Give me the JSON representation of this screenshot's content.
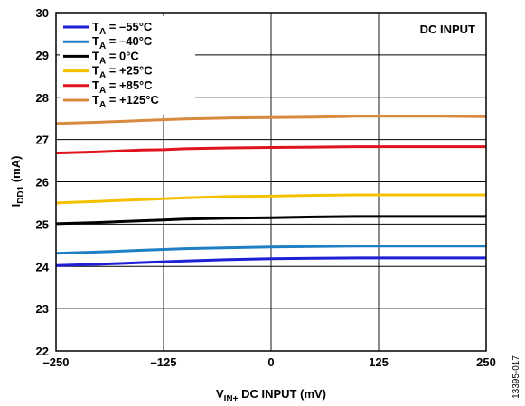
{
  "chart_data": {
    "type": "line",
    "annotation": "DC INPUT",
    "xlabel": {
      "main": "V",
      "sub": "IN+",
      "rest": " DC INPUT (mV)"
    },
    "ylabel": {
      "main": "I",
      "sub": "DD1",
      "rest": " (mA)"
    },
    "xlim": [
      -250,
      250
    ],
    "ylim": [
      22,
      30
    ],
    "x_ticks": [
      "–250",
      "–125",
      "0",
      "125",
      "250"
    ],
    "x_tick_values": [
      -250,
      -125,
      0,
      125,
      250
    ],
    "y_ticks": [
      "22",
      "23",
      "24",
      "25",
      "26",
      "27",
      "28",
      "29",
      "30"
    ],
    "y_tick_values": [
      22,
      23,
      24,
      25,
      26,
      27,
      28,
      29,
      30
    ],
    "grid": true,
    "legend_position": "top-left",
    "figure_id": "13395-017",
    "x": [
      -250,
      -200,
      -150,
      -125,
      -100,
      -50,
      0,
      50,
      100,
      125,
      150,
      200,
      250
    ],
    "series": [
      {
        "label_main": "T",
        "label_sub": "A",
        "label_rest": " = –55°C",
        "color": "#1f1fd6",
        "values": [
          24.02,
          24.05,
          24.09,
          24.11,
          24.13,
          24.16,
          24.18,
          24.19,
          24.2,
          24.2,
          24.2,
          24.2,
          24.2
        ]
      },
      {
        "label_main": "T",
        "label_sub": "A",
        "label_rest": " = –40°C",
        "color": "#1f7fc4",
        "values": [
          24.31,
          24.34,
          24.38,
          24.4,
          24.42,
          24.44,
          24.46,
          24.47,
          24.48,
          24.48,
          24.48,
          24.48,
          24.48
        ]
      },
      {
        "label_main": "T",
        "label_sub": "A",
        "label_rest": " = 0°C",
        "color": "#000000",
        "values": [
          25.01,
          25.04,
          25.08,
          25.1,
          25.12,
          25.14,
          25.15,
          25.17,
          25.18,
          25.18,
          25.18,
          25.18,
          25.18
        ]
      },
      {
        "label_main": "T",
        "label_sub": "A",
        "label_rest": " = +25°C",
        "color": "#f5c000",
        "values": [
          25.5,
          25.54,
          25.58,
          25.6,
          25.62,
          25.65,
          25.66,
          25.68,
          25.69,
          25.69,
          25.69,
          25.69,
          25.69
        ]
      },
      {
        "label_main": "T",
        "label_sub": "A",
        "label_rest": " = +85°C",
        "color": "#e0141c",
        "values": [
          26.68,
          26.71,
          26.75,
          26.76,
          26.78,
          26.8,
          26.81,
          26.82,
          26.83,
          26.83,
          26.83,
          26.83,
          26.83
        ]
      },
      {
        "label_main": "T",
        "label_sub": "A",
        "label_rest": " = +125°C",
        "color": "#d88a3e",
        "values": [
          27.38,
          27.41,
          27.45,
          27.47,
          27.49,
          27.51,
          27.52,
          27.53,
          27.55,
          27.55,
          27.55,
          27.55,
          27.54
        ]
      }
    ]
  }
}
